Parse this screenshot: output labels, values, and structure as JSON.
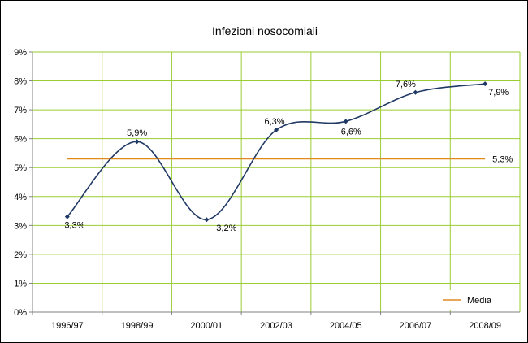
{
  "chart_data": {
    "type": "line",
    "title": "Infezioni nosocomiali",
    "xlabel": "",
    "ylabel": "",
    "categories": [
      "1996/97",
      "1998/99",
      "2000/01",
      "2002/03",
      "2004/05",
      "2006/07",
      "2008/09"
    ],
    "ylim": [
      0,
      9
    ],
    "yticks": [
      0,
      1,
      2,
      3,
      4,
      5,
      6,
      7,
      8,
      9
    ],
    "ytick_labels": [
      "0%",
      "1%",
      "2%",
      "3%",
      "4%",
      "5%",
      "6%",
      "7%",
      "8%",
      "9%"
    ],
    "grid": true,
    "series": [
      {
        "name": "Infezioni nosocomiali",
        "values": [
          3.3,
          5.9,
          3.2,
          6.3,
          6.6,
          7.6,
          7.9
        ],
        "labels": [
          "3,3%",
          "5,9%",
          "3,2%",
          "6,3%",
          "6,6%",
          "7,6%",
          "7,9%"
        ],
        "smooth": true
      },
      {
        "name": "Media",
        "value": 5.3,
        "label": "5,3%"
      }
    ],
    "legend": {
      "position": "bottom-right",
      "entries": [
        "Media"
      ]
    },
    "colors": {
      "series_line": "#1f3864",
      "media_line": "#e08a1e",
      "grid": "#9acd32",
      "axis": "#808080"
    }
  }
}
